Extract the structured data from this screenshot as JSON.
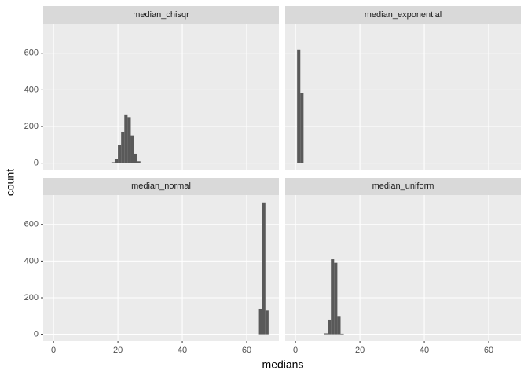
{
  "chart_data": {
    "type": "histogram",
    "x_label": "medians",
    "y_label": "count",
    "color": "#595959",
    "xlim": [
      -3.2,
      70
    ],
    "ylim": [
      -36,
      762
    ],
    "xticks": [
      0,
      20,
      40,
      60
    ],
    "yticks": [
      0,
      200,
      400,
      600
    ],
    "grid": true,
    "facets": [
      {
        "title": "median_chisqr",
        "bins": [
          18,
          19,
          20,
          21,
          22,
          23,
          24,
          25,
          26,
          27
        ],
        "values": [
          5,
          20,
          100,
          170,
          265,
          250,
          150,
          50,
          10
        ]
      },
      {
        "title": "median_exponential",
        "bins": [
          0.5,
          1.5,
          2.5
        ],
        "values": [
          617,
          383
        ]
      },
      {
        "title": "median_normal",
        "bins": [
          63.8,
          64.8,
          65.8,
          66.8
        ],
        "values": [
          140,
          720,
          130
        ]
      },
      {
        "title": "median_uniform",
        "bins": [
          9,
          10,
          11,
          12,
          13,
          14,
          15
        ],
        "values": [
          5,
          80,
          410,
          390,
          100,
          3
        ]
      }
    ]
  }
}
